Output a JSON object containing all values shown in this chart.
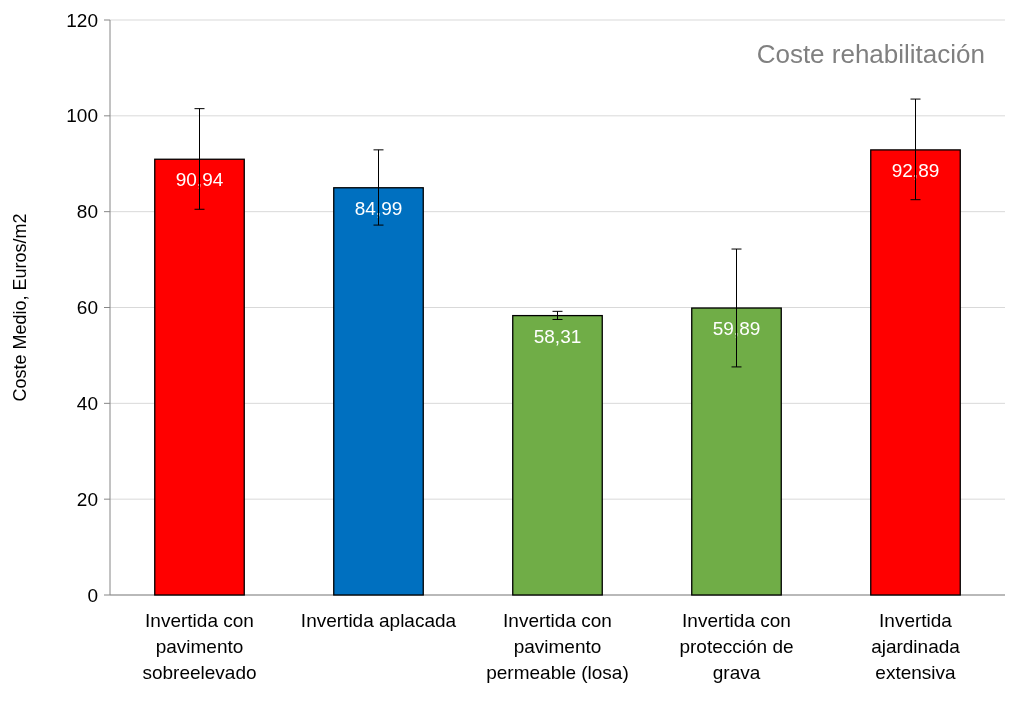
{
  "chart_data": {
    "type": "bar",
    "title": "Coste rehabilitación",
    "ylabel": "Coste Medio, Euros/m2",
    "categories": [
      "Invertida con pavimento sobreelevado",
      "Invertida aplacada",
      "Invertida con pavimento permeable (losa)",
      "Invertida con protección de grava",
      "Invertida ajardinada extensiva"
    ],
    "values": [
      90.94,
      84.99,
      58.31,
      59.89,
      92.89
    ],
    "colors": [
      "#ff0000",
      "#0070c0",
      "#70ad47",
      "#70ad47",
      "#ff0000"
    ],
    "value_labels": [
      "90,94",
      "84,99",
      "58,31",
      "59,89",
      "92,89"
    ],
    "errors": [
      [
        80.5,
        101.5
      ],
      [
        77.2,
        92.9
      ],
      [
        57.5,
        59.2
      ],
      [
        47.6,
        72.2
      ],
      [
        82.5,
        103.5
      ]
    ],
    "ylim": [
      0,
      120
    ],
    "yticks": [
      0,
      20,
      40,
      60,
      80,
      100,
      120
    ],
    "grid": "y"
  }
}
